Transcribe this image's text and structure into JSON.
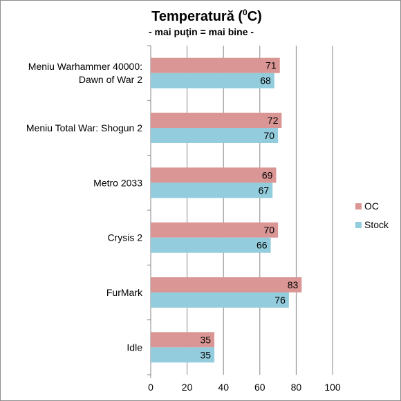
{
  "colors": {
    "oc": "#d99694",
    "stock": "#93cddd",
    "grid": "#868686",
    "axis": "#868686"
  },
  "chart_data": {
    "type": "bar",
    "orientation": "horizontal",
    "title": "Temperatură (",
    "title_sup": "0",
    "title_end": "C)",
    "subtitle": "- mai puţin = mai bine -",
    "categories": [
      [
        "Meniu Warhammer 40000:",
        "Dawn of War 2"
      ],
      [
        "Meniu Total War: Shogun 2"
      ],
      [
        "Metro 2033"
      ],
      [
        "Crysis 2"
      ],
      [
        "FurMark"
      ],
      [
        "Idle"
      ]
    ],
    "series": [
      {
        "name": "OC",
        "values": [
          71,
          72,
          69,
          70,
          83,
          35
        ]
      },
      {
        "name": "Stock",
        "values": [
          68,
          70,
          67,
          66,
          76,
          35
        ]
      }
    ],
    "xlim": [
      0,
      100
    ],
    "xticks": [
      0,
      20,
      40,
      60,
      80,
      100
    ],
    "grid": true,
    "legend_position": "right"
  }
}
